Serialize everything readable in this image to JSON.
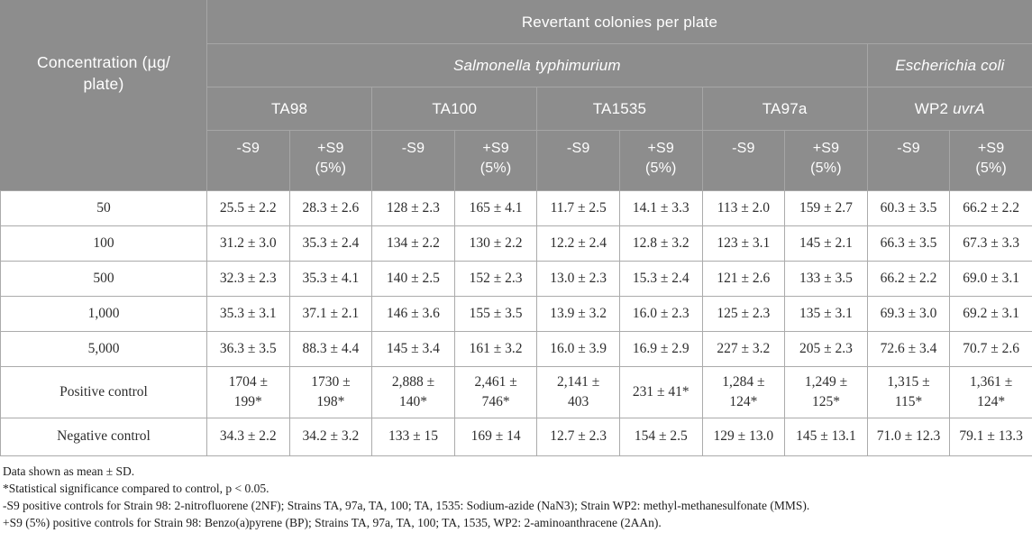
{
  "colors": {
    "header_bg": "#8d8d8d",
    "header_divider": "#a6a6a6",
    "header_text": "#ffffff",
    "body_border": "#ababab",
    "body_text": "#2d2d2d"
  },
  "table": {
    "concentration_header": "Concentration (µg/\nplate)",
    "title": "Revertant colonies per plate",
    "species": [
      {
        "label": "Salmonella typhimurium"
      },
      {
        "label": "Escherichia coli"
      }
    ],
    "strains": [
      {
        "label": "TA98",
        "label_italic": ""
      },
      {
        "label": "TA100",
        "label_italic": ""
      },
      {
        "label": "TA1535",
        "label_italic": ""
      },
      {
        "label": "TA97a",
        "label_italic": ""
      },
      {
        "label": "WP2 ",
        "label_italic": "uvrA"
      }
    ],
    "condition_minus": "-S9",
    "condition_plus": "+S9\n(5%)",
    "rows": [
      {
        "label": "50",
        "values": [
          "25.5 ± 2.2",
          "28.3 ± 2.6",
          "128 ± 2.3",
          "165 ± 4.1",
          "11.7 ± 2.5",
          "14.1 ± 3.3",
          "113 ± 2.0",
          "159 ± 2.7",
          "60.3 ± 3.5",
          "66.2 ± 2.2"
        ]
      },
      {
        "label": "100",
        "values": [
          "31.2 ± 3.0",
          "35.3 ± 2.4",
          "134 ± 2.2",
          "130 ± 2.2",
          "12.2 ± 2.4",
          "12.8 ± 3.2",
          "123 ± 3.1",
          "145 ± 2.1",
          "66.3 ± 3.5",
          "67.3 ± 3.3"
        ]
      },
      {
        "label": "500",
        "values": [
          "32.3 ± 2.3",
          "35.3 ± 4.1",
          "140 ± 2.5",
          "152 ± 2.3",
          "13.0 ± 2.3",
          "15.3 ± 2.4",
          "121 ± 2.6",
          "133 ± 3.5",
          "66.2 ± 2.2",
          "69.0 ± 3.1"
        ]
      },
      {
        "label": "1,000",
        "values": [
          "35.3 ± 3.1",
          "37.1 ± 2.1",
          "146 ± 3.6",
          "155 ± 3.5",
          "13.9 ± 3.2",
          "16.0 ± 2.3",
          "125 ± 2.3",
          "135 ± 3.1",
          "69.3 ± 3.0",
          "69.2 ± 3.1"
        ]
      },
      {
        "label": "5,000",
        "values": [
          "36.3 ± 3.5",
          "88.3 ± 4.4",
          "145 ± 3.4",
          "161 ± 3.2",
          "16.0 ± 3.9",
          "16.9 ± 2.9",
          "227 ± 3.2",
          "205 ± 2.3",
          "72.6 ± 3.4",
          "70.7 ± 2.6"
        ]
      },
      {
        "label": "Positive control",
        "values": [
          "1704 ±\n199*",
          "1730 ±\n198*",
          "2,888 ±\n140*",
          "2,461 ±\n746*",
          "2,141 ±\n403",
          "231 ± 41*",
          "1,284 ±\n124*",
          "1,249 ±\n125*",
          "1,315 ±\n115*",
          "1,361 ±\n124*"
        ]
      },
      {
        "label": "Negative control",
        "values": [
          "34.3 ± 2.2",
          "34.2 ± 3.2",
          "133 ± 15",
          "169 ± 14",
          "12.7 ± 2.3",
          "154 ± 2.5",
          "129 ± 13.0",
          "145 ± 13.1",
          "71.0 ± 12.3",
          "79.1 ± 13.3"
        ]
      }
    ],
    "footnotes": [
      "Data shown as mean ± SD.",
      "*Statistical significance compared to control, p < 0.05.",
      "-S9 positive controls for Strain 98: 2-nitrofluorene (2NF); Strains TA, 97a, TA, 100; TA, 1535: Sodium-azide (NaN3); Strain WP2: methyl-methanesulfonate (MMS).",
      "+S9 (5%) positive controls for Strain 98: Benzo(a)pyrene (BP); Strains TA, 97a, TA, 100; TA, 1535, WP2: 2-aminoanthracene (2AAn)."
    ]
  }
}
